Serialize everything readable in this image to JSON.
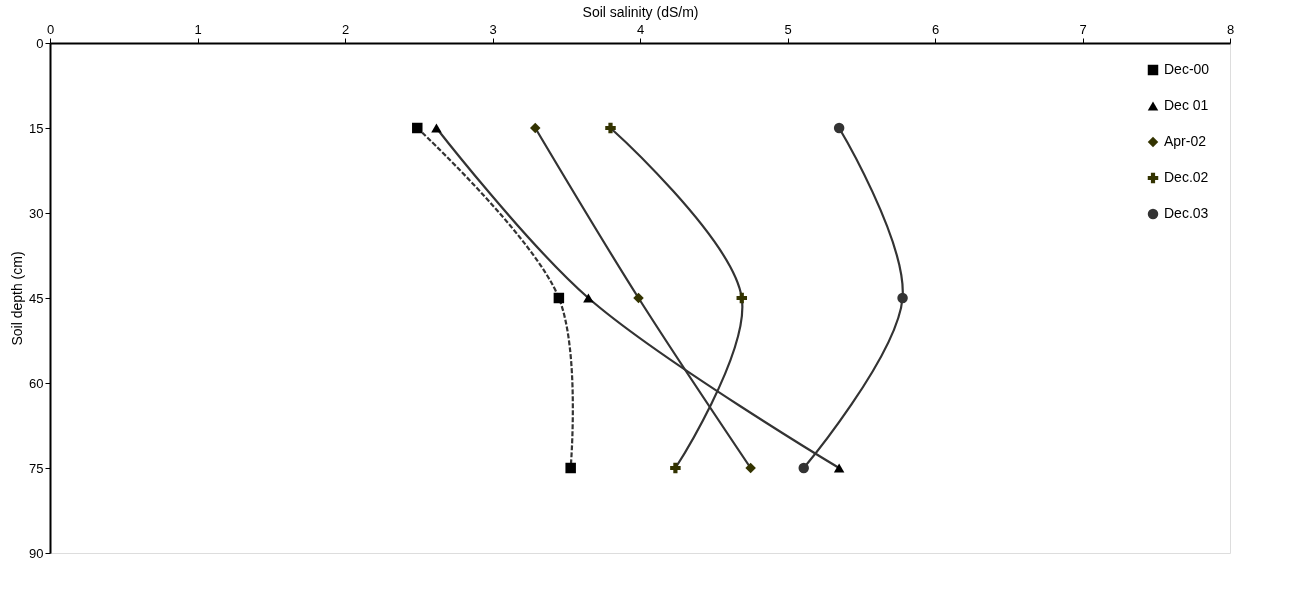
{
  "chart_data": {
    "type": "line",
    "xlabel": "Soil salinity (dS/m)",
    "ylabel": "Soil depth (cm)",
    "xlim": [
      0,
      8
    ],
    "xticks": [
      0,
      1,
      2,
      3,
      4,
      5,
      6,
      7,
      8
    ],
    "ylim": [
      90,
      0
    ],
    "yticks": [
      0,
      15,
      30,
      45,
      60,
      75,
      90
    ],
    "grid": false,
    "legend": "top right",
    "series": [
      {
        "name": "Dec-00",
        "color": "#000000",
        "marker": "square",
        "line_style": "dashed",
        "x": [
          2.49,
          3.45,
          3.53
        ],
        "values": [
          15,
          45,
          75
        ]
      },
      {
        "name": "Dec 01",
        "color": "#000000",
        "marker": "triangle",
        "line_style": "solid",
        "x": [
          2.62,
          3.65,
          5.35
        ],
        "values": [
          15,
          45,
          75
        ]
      },
      {
        "name": "Apr-02",
        "color": "#333300",
        "marker": "diamond",
        "line_style": "solid",
        "x": [
          3.29,
          3.99,
          4.75
        ],
        "values": [
          15,
          45,
          75
        ]
      },
      {
        "name": "Dec.02",
        "color": "#333300",
        "marker": "cross",
        "line_style": "solid",
        "x": [
          3.8,
          4.69,
          4.24
        ],
        "values": [
          15,
          45,
          75
        ]
      },
      {
        "name": "Dec.03",
        "color": "#333333",
        "marker": "circle",
        "line_style": "solid",
        "x": [
          5.35,
          5.78,
          5.11
        ],
        "values": [
          15,
          45,
          75
        ]
      }
    ]
  }
}
